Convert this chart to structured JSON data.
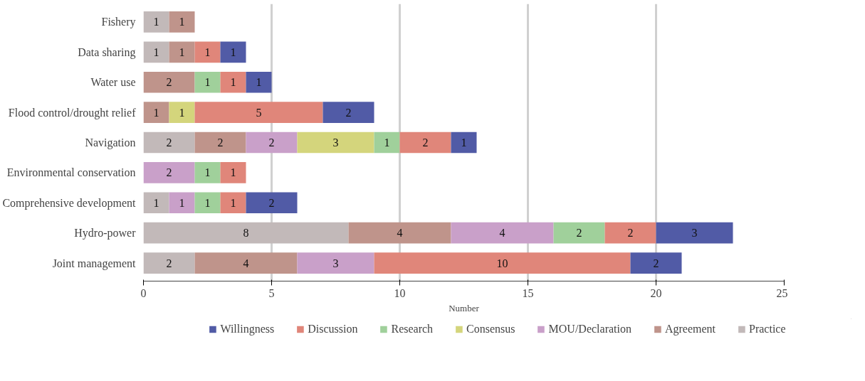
{
  "chart_data": {
    "type": "bar",
    "orientation": "horizontal",
    "stacked": true,
    "xlabel": "Number",
    "categories": [
      "Fishery",
      "Data sharing",
      "Water use",
      "Flood control/drought relief",
      "Navigation",
      "Environmental conservation",
      "Comprehensive development",
      "Hydro-power",
      "Joint management"
    ],
    "series": [
      {
        "name": "Practice",
        "color": "#c2b9b9",
        "values": [
          1,
          1,
          null,
          null,
          2,
          null,
          1,
          8,
          2
        ]
      },
      {
        "name": "Agreement",
        "color": "#bf948b",
        "values": [
          1,
          1,
          2,
          1,
          2,
          null,
          null,
          4,
          4
        ]
      },
      {
        "name": "MOU/Declaration",
        "color": "#c9a0c9",
        "values": [
          null,
          null,
          null,
          null,
          2,
          2,
          1,
          4,
          3
        ]
      },
      {
        "name": "Consensus",
        "color": "#d4d57c",
        "values": [
          null,
          null,
          null,
          1,
          3,
          null,
          null,
          null,
          null
        ]
      },
      {
        "name": "Research",
        "color": "#a0d09b",
        "values": [
          null,
          null,
          1,
          null,
          1,
          1,
          1,
          2,
          null
        ]
      },
      {
        "name": "Discussion",
        "color": "#e0867a",
        "values": [
          null,
          1,
          1,
          5,
          2,
          1,
          1,
          2,
          10
        ]
      },
      {
        "name": "Willingness",
        "color": "#515ba6",
        "values": [
          null,
          1,
          1,
          2,
          1,
          null,
          2,
          3,
          2
        ]
      }
    ],
    "xlim": [
      0,
      25
    ],
    "xticks": [
      0,
      5,
      10,
      15,
      20,
      25
    ],
    "grid": "x",
    "legend": "bottom",
    "data_labels": true
  }
}
